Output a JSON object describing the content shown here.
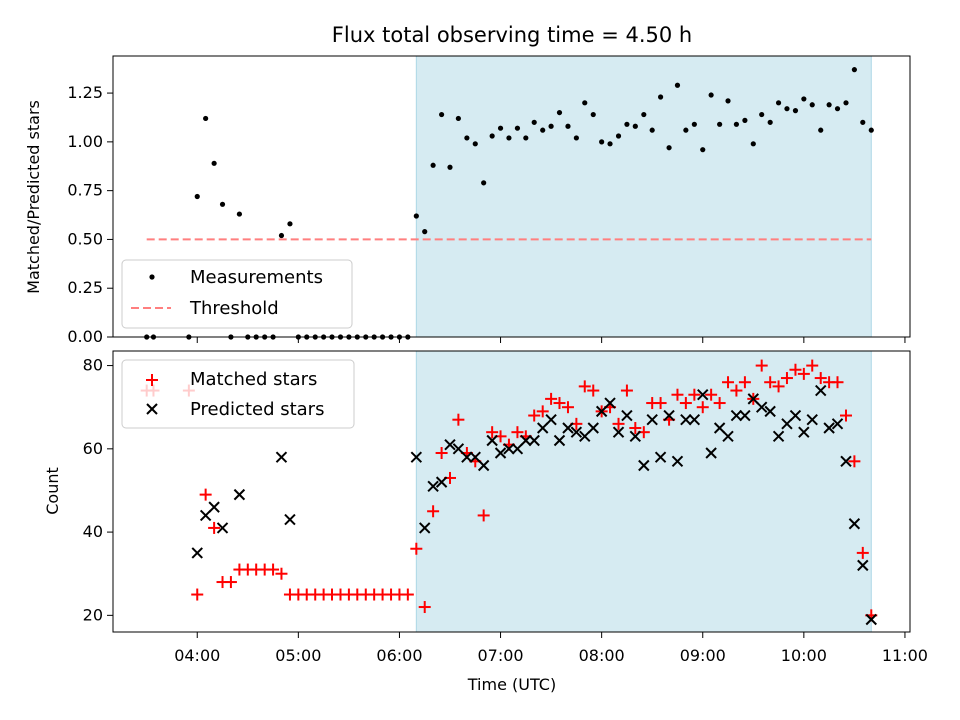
{
  "title": "Flux total observing time = 4.50 h",
  "colors": {
    "shade": "#add8e6",
    "matched": "#ff0000",
    "predicted": "#000000",
    "threshold": "#ff7f7f",
    "measure": "#000000"
  },
  "chart_data": [
    {
      "type": "scatter",
      "panel": "top",
      "ylabel": "Matched/Predicted stars",
      "xlabel": "",
      "x_unit": "hours UTC",
      "xlim": [
        3.1667,
        11.05
      ],
      "ylim": [
        0,
        1.44
      ],
      "yticks": [
        "0.00",
        "0.25",
        "0.50",
        "0.75",
        "1.00",
        "1.25"
      ],
      "shaded_interval": [
        6.167,
        10.667
      ],
      "legend": {
        "position": "lower-left",
        "entries": [
          "Measurements",
          "Threshold"
        ]
      },
      "threshold": {
        "name": "Threshold",
        "value": 0.5,
        "x_range": [
          3.5,
          10.667
        ]
      },
      "series": [
        {
          "name": "Measurements",
          "x": [
            3.5,
            3.567,
            3.917,
            4.0,
            4.083,
            4.167,
            4.25,
            4.333,
            4.417,
            4.5,
            4.583,
            4.667,
            4.75,
            4.833,
            4.917,
            5.0,
            5.083,
            5.167,
            5.25,
            5.333,
            5.417,
            5.5,
            5.583,
            5.667,
            5.75,
            5.833,
            5.917,
            6.0,
            6.083,
            6.167,
            6.25,
            6.333,
            6.417,
            6.5,
            6.583,
            6.667,
            6.75,
            6.833,
            6.917,
            7.0,
            7.083,
            7.167,
            7.25,
            7.333,
            7.417,
            7.5,
            7.583,
            7.667,
            7.75,
            7.833,
            7.917,
            8.0,
            8.083,
            8.167,
            8.25,
            8.333,
            8.417,
            8.5,
            8.583,
            8.667,
            8.75,
            8.833,
            8.917,
            9.0,
            9.083,
            9.167,
            9.25,
            9.333,
            9.417,
            9.5,
            9.583,
            9.667,
            9.75,
            9.833,
            9.917,
            10.0,
            10.083,
            10.167,
            10.25,
            10.333,
            10.417,
            10.5,
            10.583,
            10.667
          ],
          "y": [
            0,
            0,
            0,
            0.72,
            1.12,
            0.89,
            0.68,
            0,
            0.63,
            0,
            0,
            0,
            0,
            0.52,
            0.58,
            0,
            0,
            0,
            0,
            0,
            0,
            0,
            0,
            0,
            0,
            0,
            0,
            0,
            0,
            0.62,
            0.54,
            0.88,
            1.14,
            0.87,
            1.12,
            1.02,
            0.99,
            0.79,
            1.03,
            1.07,
            1.02,
            1.07,
            1.02,
            1.1,
            1.06,
            1.08,
            1.15,
            1.08,
            1.02,
            1.2,
            1.14,
            1.0,
            0.99,
            1.03,
            1.09,
            1.08,
            1.14,
            1.06,
            1.23,
            0.97,
            1.29,
            1.06,
            1.09,
            0.96,
            1.24,
            1.09,
            1.21,
            1.09,
            1.11,
            0.99,
            1.14,
            1.1,
            1.2,
            1.17,
            1.16,
            1.22,
            1.19,
            1.06,
            1.19,
            1.17,
            1.2,
            1.37,
            1.1,
            1.06
          ]
        }
      ]
    },
    {
      "type": "scatter",
      "panel": "bottom",
      "ylabel": "Count",
      "xlabel": "Time (UTC)",
      "x_unit": "hours UTC",
      "xlim": [
        3.1667,
        11.05
      ],
      "ylim": [
        16,
        83.5
      ],
      "yticks": [
        "20",
        "40",
        "60",
        "80"
      ],
      "xticks": [
        "04:00",
        "05:00",
        "06:00",
        "07:00",
        "08:00",
        "09:00",
        "10:00",
        "11:00"
      ],
      "shaded_interval": [
        6.167,
        10.667
      ],
      "legend": {
        "position": "top-left",
        "entries": [
          "Matched stars",
          "Predicted stars"
        ]
      },
      "series": [
        {
          "name": "Matched stars",
          "x": [
            3.5,
            3.567,
            3.917,
            4.0,
            4.083,
            4.167,
            4.25,
            4.333,
            4.417,
            4.5,
            4.583,
            4.667,
            4.75,
            4.833,
            4.917,
            5.0,
            5.083,
            5.167,
            5.25,
            5.333,
            5.417,
            5.5,
            5.583,
            5.667,
            5.75,
            5.833,
            5.917,
            6.0,
            6.083,
            6.167,
            6.25,
            6.333,
            6.417,
            6.5,
            6.583,
            6.667,
            6.75,
            6.833,
            6.917,
            7.0,
            7.083,
            7.167,
            7.25,
            7.333,
            7.417,
            7.5,
            7.583,
            7.667,
            7.75,
            7.833,
            7.917,
            8.0,
            8.083,
            8.167,
            8.25,
            8.333,
            8.417,
            8.5,
            8.583,
            8.667,
            8.75,
            8.833,
            8.917,
            9.0,
            9.083,
            9.167,
            9.25,
            9.333,
            9.417,
            9.5,
            9.583,
            9.667,
            9.75,
            9.833,
            9.917,
            10.0,
            10.083,
            10.167,
            10.25,
            10.333,
            10.417,
            10.5,
            10.583,
            10.667
          ],
          "y": [
            74,
            74,
            74,
            25,
            49,
            41,
            28,
            28,
            31,
            31,
            31,
            31,
            31,
            30,
            25,
            25,
            25,
            25,
            25,
            25,
            25,
            25,
            25,
            25,
            25,
            25,
            25,
            25,
            25,
            36,
            22,
            45,
            59,
            53,
            67,
            59,
            57,
            44,
            64,
            63,
            61,
            64,
            63,
            68,
            69,
            72,
            71,
            70,
            66,
            75,
            74,
            69,
            70,
            66,
            74,
            65,
            64,
            71,
            71,
            67,
            73,
            71,
            73,
            70,
            73,
            71,
            76,
            74,
            76,
            72,
            80,
            76,
            75,
            77,
            79,
            78,
            80,
            77,
            76,
            76,
            68,
            57,
            35,
            20
          ]
        },
        {
          "name": "Predicted stars",
          "x": [
            4.0,
            4.083,
            4.167,
            4.25,
            4.417,
            4.833,
            4.917,
            6.167,
            6.25,
            6.333,
            6.417,
            6.5,
            6.583,
            6.667,
            6.75,
            6.833,
            6.917,
            7.0,
            7.083,
            7.167,
            7.25,
            7.333,
            7.417,
            7.5,
            7.583,
            7.667,
            7.75,
            7.833,
            7.917,
            8.0,
            8.083,
            8.167,
            8.25,
            8.333,
            8.417,
            8.5,
            8.583,
            8.667,
            8.75,
            8.833,
            8.917,
            9.0,
            9.083,
            9.167,
            9.25,
            9.333,
            9.417,
            9.5,
            9.583,
            9.667,
            9.75,
            9.833,
            9.917,
            10.0,
            10.083,
            10.167,
            10.25,
            10.333,
            10.417,
            10.5,
            10.583,
            10.667
          ],
          "y": [
            35,
            44,
            46,
            41,
            49,
            58,
            43,
            58,
            41,
            51,
            52,
            61,
            60,
            58,
            58,
            56,
            62,
            59,
            60,
            60,
            62,
            62,
            65,
            67,
            62,
            65,
            64,
            63,
            65,
            69,
            71,
            64,
            68,
            63,
            56,
            67,
            58,
            68,
            57,
            67,
            67,
            73,
            59,
            65,
            63,
            68,
            68,
            72,
            70,
            69,
            63,
            66,
            68,
            64,
            67,
            74,
            65,
            66,
            57,
            42,
            32,
            19
          ]
        }
      ]
    }
  ]
}
